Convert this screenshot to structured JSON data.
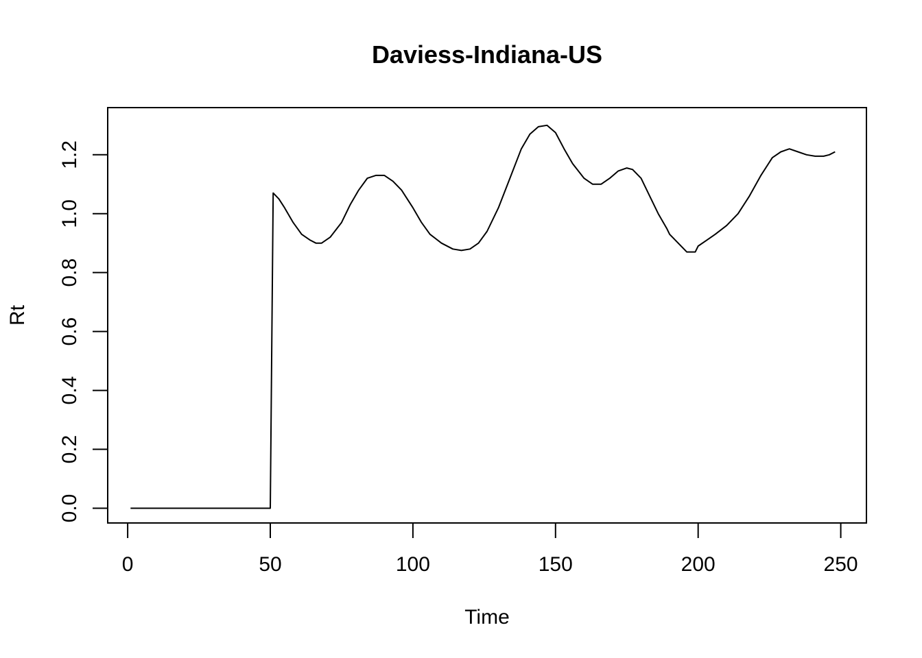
{
  "chart_data": {
    "type": "line",
    "title": "Daviess-Indiana-US",
    "xlabel": "Time",
    "ylabel": "Rt",
    "xlim": [
      -7,
      259
    ],
    "ylim": [
      -0.05,
      1.36
    ],
    "x_ticks": [
      0,
      50,
      100,
      150,
      200,
      250
    ],
    "x_tick_labels": [
      "0",
      "50",
      "100",
      "150",
      "200",
      "250"
    ],
    "y_ticks": [
      0.0,
      0.2,
      0.4,
      0.6,
      0.8,
      1.0,
      1.2
    ],
    "y_tick_labels": [
      "0.0",
      "0.2",
      "0.4",
      "0.6",
      "0.8",
      "1.0",
      "1.2"
    ],
    "grid": false,
    "series": [
      {
        "color": "#000000",
        "x": [
          1,
          10,
          20,
          30,
          40,
          50,
          51,
          53,
          55,
          58,
          61,
          64,
          66,
          68,
          71,
          75,
          78,
          81,
          84,
          87,
          90,
          93,
          96,
          100,
          103,
          106,
          110,
          114,
          117,
          120,
          123,
          126,
          130,
          134,
          138,
          141,
          144,
          147,
          150,
          153,
          156,
          160,
          163,
          166,
          169,
          172,
          175,
          177,
          180,
          183,
          186,
          189,
          190,
          193,
          196,
          199,
          200,
          203,
          206,
          210,
          214,
          218,
          222,
          226,
          229,
          232,
          235,
          238,
          241,
          244,
          246,
          248
        ],
        "y": [
          0,
          0,
          0,
          0,
          0,
          0,
          1.07,
          1.05,
          1.02,
          0.97,
          0.93,
          0.91,
          0.9,
          0.9,
          0.92,
          0.97,
          1.03,
          1.08,
          1.12,
          1.13,
          1.13,
          1.11,
          1.08,
          1.02,
          0.97,
          0.93,
          0.9,
          0.88,
          0.875,
          0.88,
          0.9,
          0.94,
          1.02,
          1.12,
          1.22,
          1.27,
          1.295,
          1.3,
          1.275,
          1.22,
          1.17,
          1.12,
          1.1,
          1.1,
          1.12,
          1.145,
          1.155,
          1.15,
          1.12,
          1.06,
          1.0,
          0.95,
          0.93,
          0.9,
          0.87,
          0.87,
          0.89,
          0.91,
          0.93,
          0.96,
          1.0,
          1.06,
          1.13,
          1.19,
          1.21,
          1.22,
          1.21,
          1.2,
          1.195,
          1.195,
          1.2,
          1.21
        ]
      }
    ]
  }
}
